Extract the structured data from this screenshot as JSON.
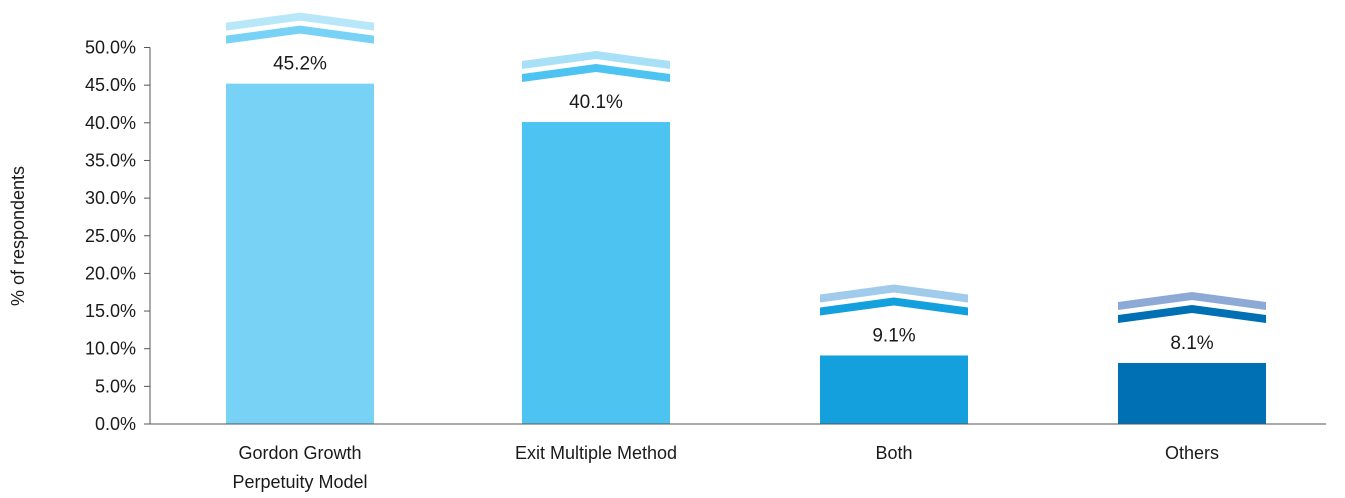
{
  "chart_data": {
    "type": "bar",
    "title": "",
    "xlabel": "",
    "ylabel": "% of respondents",
    "ylim": [
      0,
      50
    ],
    "ytick_step": 5,
    "ytick_labels": [
      "0.0%",
      "5.0%",
      "10.0%",
      "15.0%",
      "20.0%",
      "25.0%",
      "30.0%",
      "35.0%",
      "40.0%",
      "45.0%",
      "50.0%"
    ],
    "grid": false,
    "legend": "none",
    "categories": [
      [
        "Gordon Growth",
        "Perpetuity Model"
      ],
      [
        "Exit Multiple Method"
      ],
      [
        "Both"
      ],
      [
        "Others"
      ]
    ],
    "values": [
      45.2,
      40.1,
      9.1,
      8.1
    ],
    "data_labels": [
      "45.2%",
      "40.1%",
      "9.1%",
      "8.1%"
    ],
    "colors": [
      {
        "bar": "#77D2F5",
        "chevron_dark": "#77D2F5",
        "chevron_light": "#B9E7FA"
      },
      {
        "bar": "#4DC3F1",
        "chevron_dark": "#4DC3F1",
        "chevron_light": "#A7E0F7"
      },
      {
        "bar": "#14A0DC",
        "chevron_dark": "#14A0DC",
        "chevron_light": "#A0CBEB"
      },
      {
        "bar": "#0070B4",
        "chevron_dark": "#0070B4",
        "chevron_light": "#8DA9D5"
      }
    ]
  }
}
